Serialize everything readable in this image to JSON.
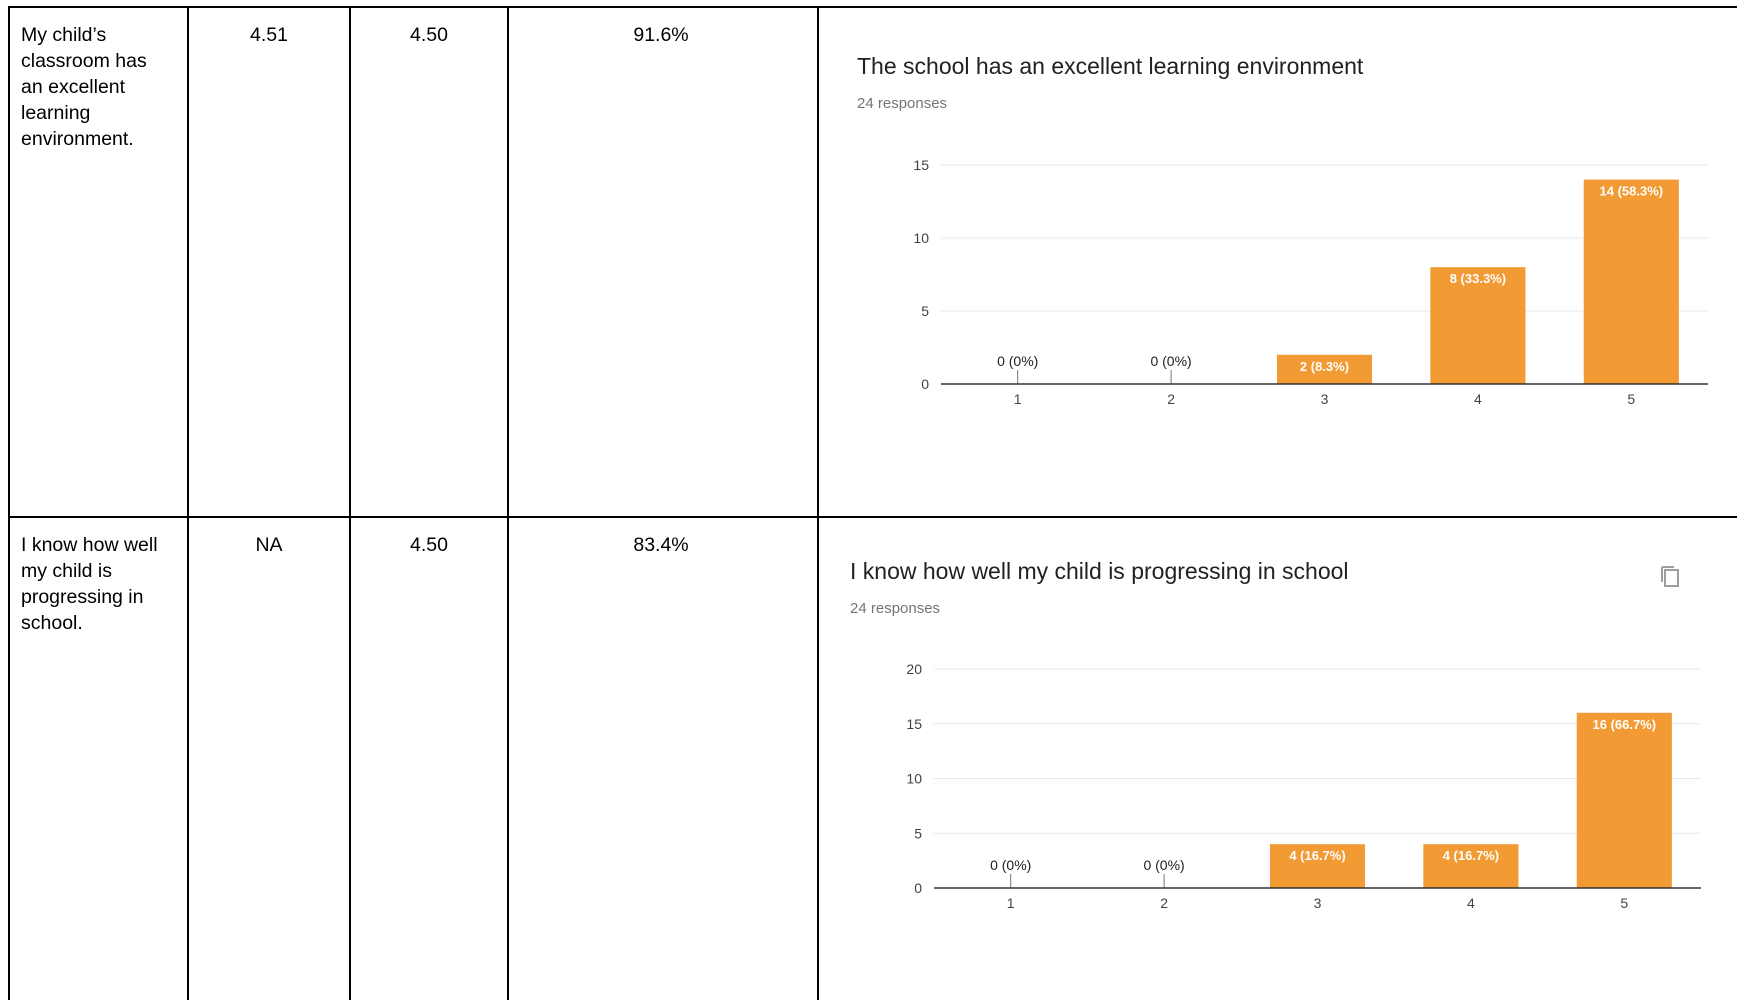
{
  "rows": [
    {
      "question": "My child’s classroom has an excellent learning environment.",
      "question_lines": [
        "My child’s",
        "classroom has",
        "an excellent",
        "learning",
        "environment."
      ],
      "col2": "4.51",
      "col3": "4.50",
      "col4": "91.6%"
    },
    {
      "question": "I know how well my child is progressing in school.",
      "question_lines": [
        "I know how well",
        "my child is",
        "progressing in",
        "school."
      ],
      "col2": "NA",
      "col3": "4.50",
      "col4": "83.4%"
    }
  ],
  "icons": {
    "copy": "copy-icon"
  },
  "colors": {
    "bar": "#F29A33",
    "grid": "#E8E8E8",
    "axis": "#333333",
    "text": "#212121",
    "subtext": "#757575"
  },
  "chart_data": [
    {
      "type": "bar",
      "title": "The school has an excellent learning environment",
      "subtitle": "24 responses",
      "categories": [
        "1",
        "2",
        "3",
        "4",
        "5"
      ],
      "values": [
        0,
        0,
        2,
        8,
        14
      ],
      "labels": [
        "0 (0%)",
        "0 (0%)",
        "2 (8.3%)",
        "8 (33.3%)",
        "14 (58.3%)"
      ],
      "yticks": [
        0,
        5,
        10,
        15
      ],
      "ylim": [
        0,
        15
      ],
      "grid": true,
      "legend": "none"
    },
    {
      "type": "bar",
      "title": "I know how well my child is progressing in school",
      "subtitle": "24 responses",
      "categories": [
        "1",
        "2",
        "3",
        "4",
        "5"
      ],
      "values": [
        0,
        0,
        4,
        4,
        16
      ],
      "labels": [
        "0 (0%)",
        "0 (0%)",
        "4 (16.7%)",
        "4 (16.7%)",
        "16 (66.7%)"
      ],
      "yticks": [
        0,
        5,
        10,
        15,
        20
      ],
      "ylim": [
        0,
        20
      ],
      "grid": true,
      "legend": "none"
    }
  ]
}
